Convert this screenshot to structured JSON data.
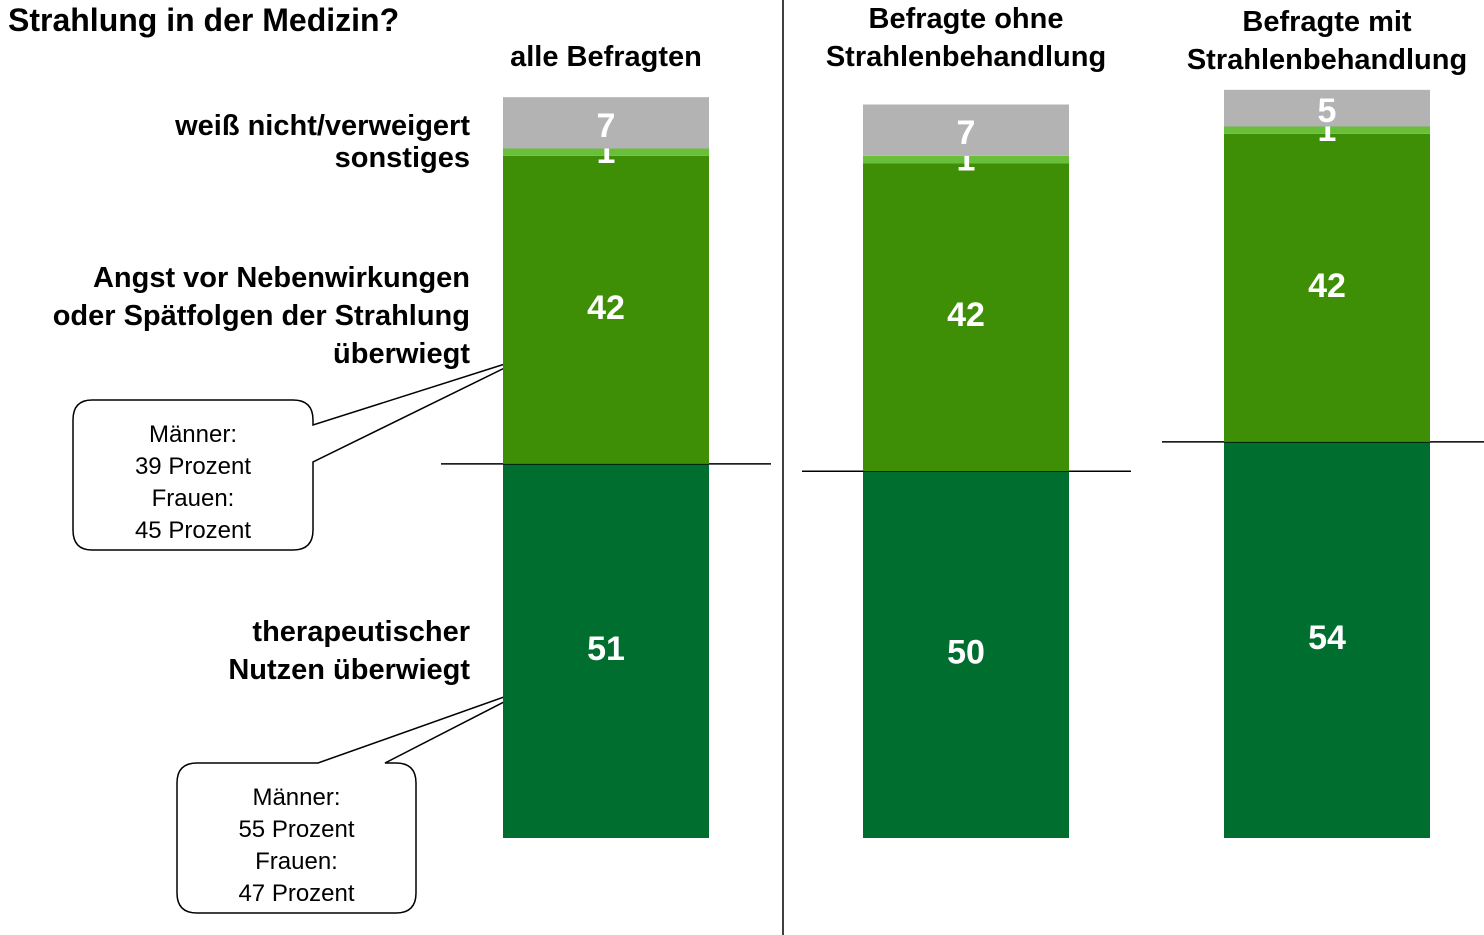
{
  "chart_data": {
    "type": "bar",
    "stacked": true,
    "title": "Strahlung in der Medizin?",
    "categories": [
      "alle Befragten",
      "Befragte ohne\nStrahlenbehandlung",
      "Befragte mit\nStrahlenbehandlung"
    ],
    "series": [
      {
        "name": "therapeutischer\nNutzen überwiegt",
        "color": "#006e2e",
        "values": [
          51,
          50,
          54
        ]
      },
      {
        "name": "Angst vor Nebenwirkungen\noder Spätfolgen der Strahlung\nüberwiegt",
        "color": "#3f8f06",
        "values": [
          42,
          42,
          42
        ]
      },
      {
        "name": "sonstiges",
        "color": "#6abf3a",
        "values": [
          1,
          1,
          1
        ]
      },
      {
        "name": "weiß nicht/verweigert",
        "color": "#b3b3b3",
        "values": [
          7,
          7,
          5
        ]
      }
    ],
    "annotations": [
      "Männer:\n39 Prozent\nFrauen:\n45 Prozent",
      "Männer:\n55 Prozent\nFrauen:\n47 Prozent"
    ]
  }
}
